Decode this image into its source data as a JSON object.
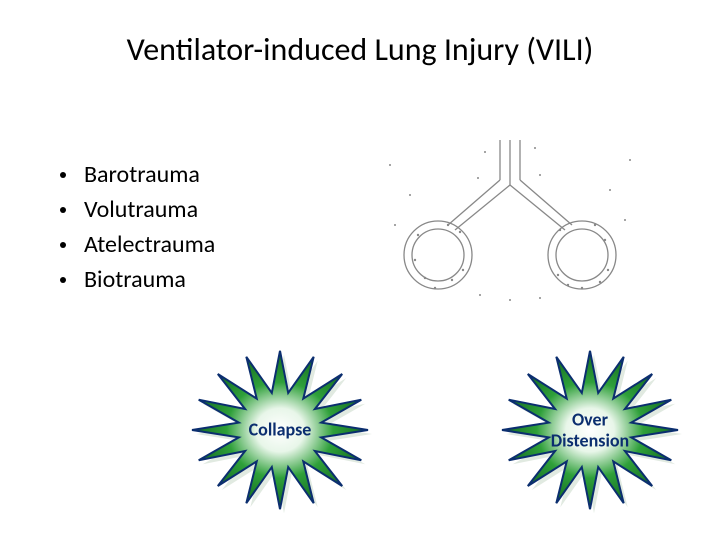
{
  "title": "Ventilator-induced Lung Injury (VILI)",
  "bullets": [
    "Barotrauma",
    "Volutrauma",
    "Atelectrauma",
    "Biotrauma"
  ],
  "starbursts": [
    {
      "label": "Collapse",
      "label_color": "#0b2e6f",
      "stroke_color": "#0b2e6f"
    },
    {
      "label": "Over\nDistension",
      "label_color": "#0b2e6f",
      "stroke_color": "#0b2e6f"
    }
  ],
  "starburst_style": {
    "fill_inner": "#ffffff",
    "fill_mid": "#2fa03a",
    "fill_outer": "#0c5c1a",
    "points": 16
  },
  "diagram": {
    "stroke": "#7a7a7a",
    "dot_fill": "#7a7a7a"
  },
  "colors": {
    "background": "#ffffff",
    "text": "#000000"
  },
  "fonts": {
    "title_size": 32,
    "bullet_size": 24,
    "label_size": 18
  }
}
